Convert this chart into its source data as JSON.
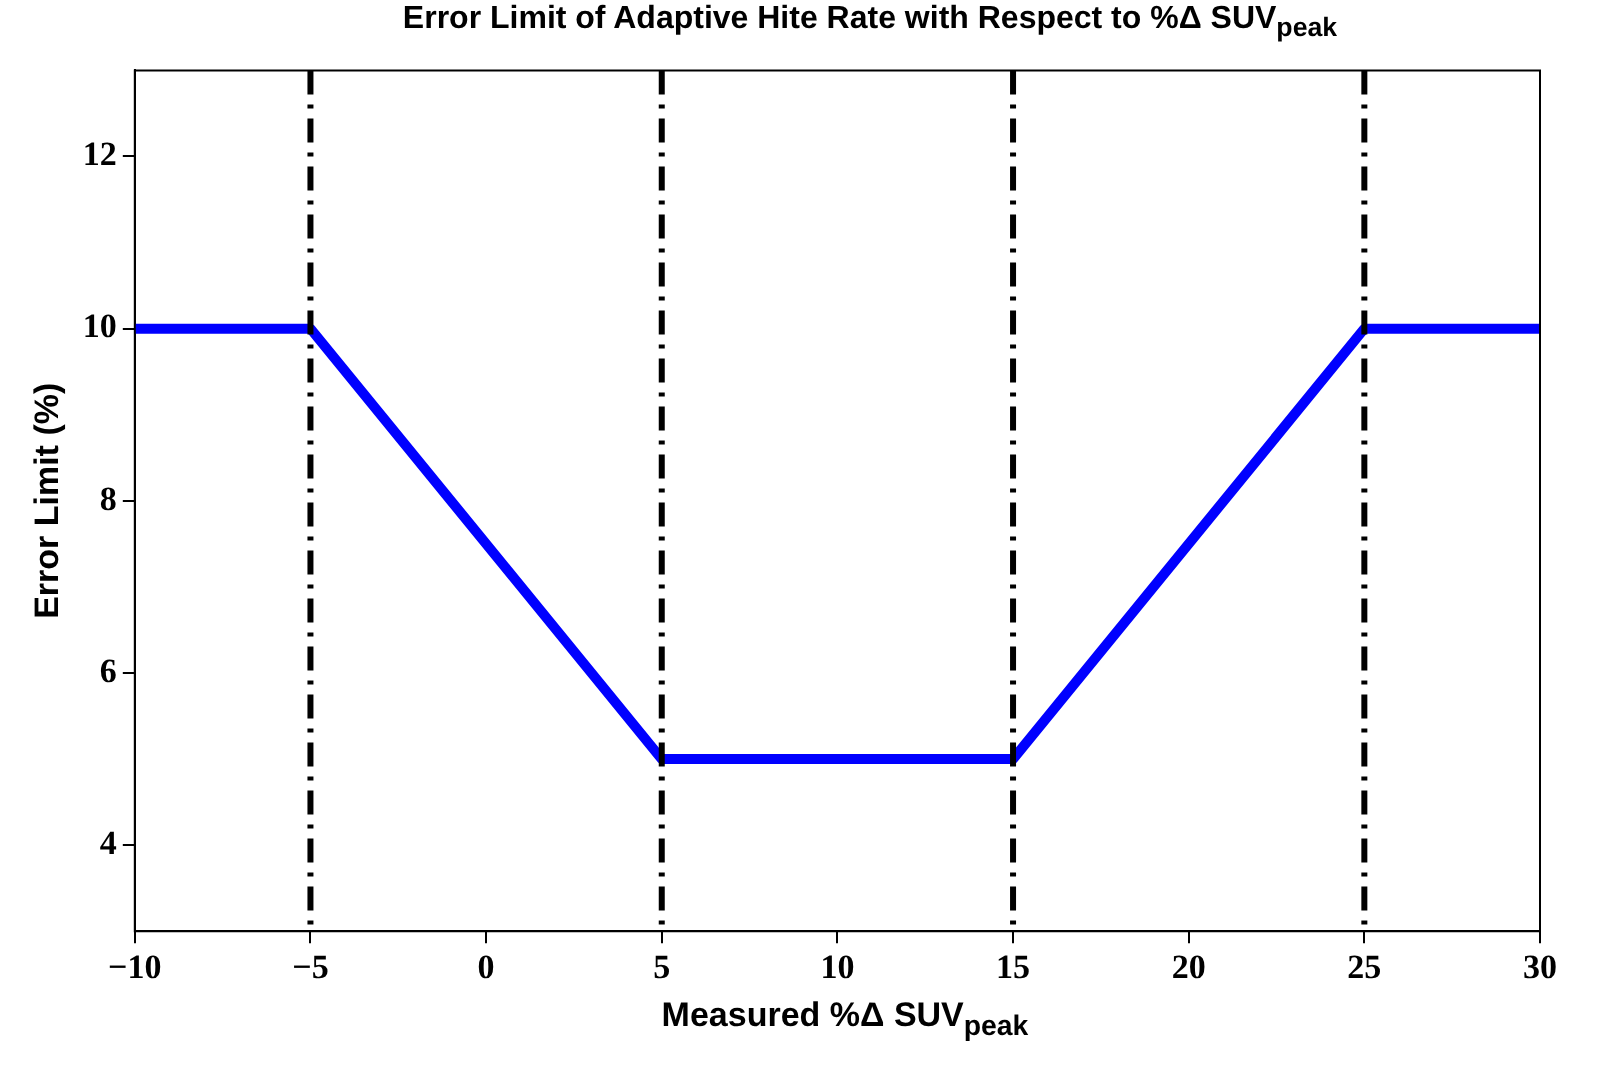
{
  "chart_data": {
    "type": "line",
    "title": "Error Limit of Adaptive Hite Rate with Respect to %Δ SUV$_{peak}$",
    "xlabel": "Measured %Δ SUV$_{peak}$",
    "ylabel": "Error Limit (%)",
    "x": [
      -10,
      -5,
      5,
      15,
      25,
      30
    ],
    "series": [
      {
        "color": "#0000ff",
        "values": [
          10,
          10,
          5,
          5,
          10,
          10
        ]
      }
    ],
    "xlim": [
      -10,
      30
    ],
    "xticks": [
      -10,
      -5,
      0,
      5,
      10,
      15,
      20,
      25,
      30
    ],
    "ylim": [
      3,
      13
    ],
    "yticks": [
      4,
      6,
      8,
      10,
      12
    ],
    "ref_lines": [
      {
        "axis": "x",
        "value": -5,
        "color": "#000000",
        "line_style": "dashdot"
      },
      {
        "axis": "x",
        "value": 5,
        "color": "#000000",
        "line_style": "dashdot"
      },
      {
        "axis": "x",
        "value": 15,
        "color": "#000000",
        "line_style": "dashdot"
      },
      {
        "axis": "x",
        "value": 25,
        "color": "#000000",
        "line_style": "dashdot"
      }
    ],
    "grid": false,
    "legend": false,
    "marker": "none",
    "line_style": "solid"
  }
}
